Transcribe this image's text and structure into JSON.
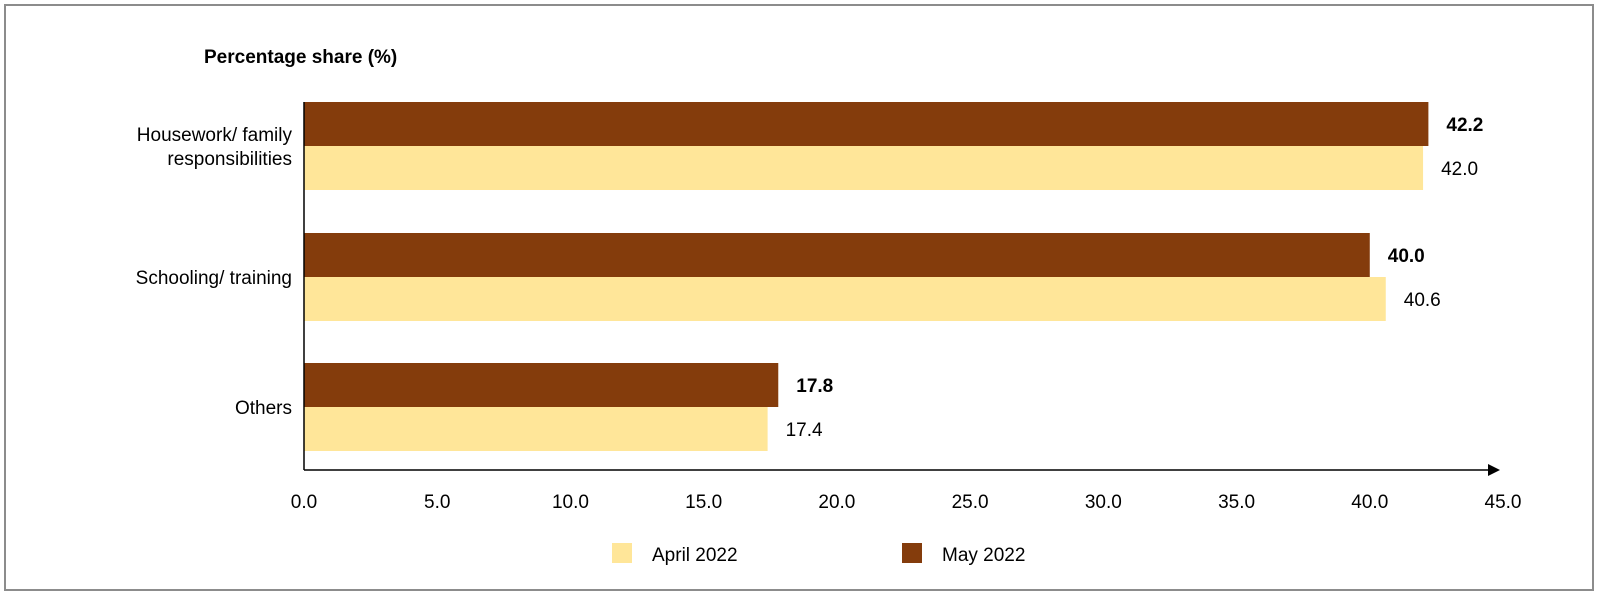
{
  "chart_data": {
    "type": "bar",
    "orientation": "horizontal",
    "title": "Percentage share (%)",
    "categories": [
      "Housework/ family responsibilities",
      "Schooling/ training",
      "Others"
    ],
    "category_lines": [
      [
        "Housework/ family",
        "responsibilities"
      ],
      [
        "Schooling/ training"
      ],
      [
        "Others"
      ]
    ],
    "series": [
      {
        "name": "May 2022",
        "values": [
          42.2,
          40.0,
          17.8
        ],
        "labels": [
          "42.2",
          "40.0",
          "17.8"
        ],
        "color": "#843c0c",
        "label_bold": true
      },
      {
        "name": "April 2022",
        "values": [
          42.0,
          40.6,
          17.4
        ],
        "labels": [
          "42.0",
          "40.6",
          "17.4"
        ],
        "color": "#ffe699",
        "label_bold": false
      }
    ],
    "legend": [
      "April 2022",
      "May 2022"
    ],
    "legend_position": "bottom",
    "xlim": [
      0,
      45
    ],
    "xticks": [
      "0.0",
      "5.0",
      "10.0",
      "15.0",
      "20.0",
      "25.0",
      "30.0",
      "35.0",
      "40.0",
      "45.0"
    ],
    "grid": false
  }
}
